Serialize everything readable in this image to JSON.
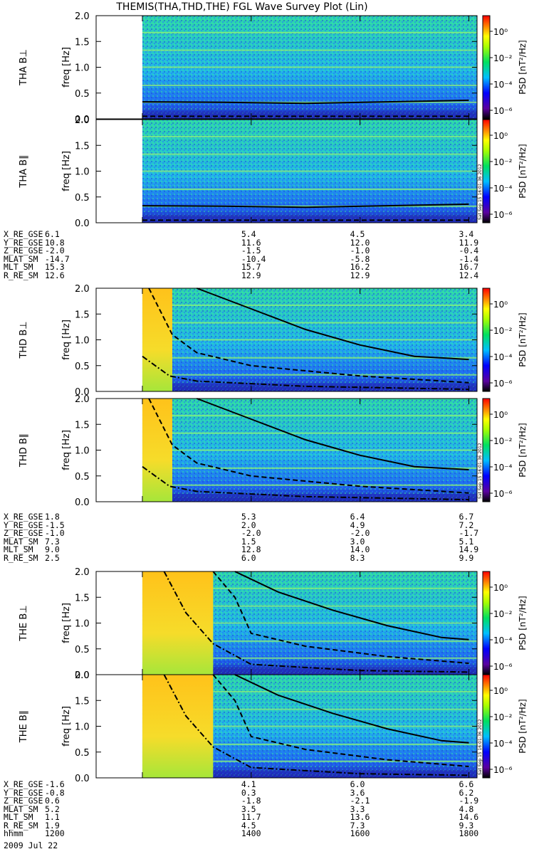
{
  "title": "THEMIS(THA,THD,THE) FGL Wave Survey Plot (Lin)",
  "footer": {
    "time_label": "hhmm",
    "date": "2009 Jul 22",
    "stamp": "Sat Sep 15 16:01:36 2012"
  },
  "colorbar": {
    "title": "PSD [nT²/Hz]",
    "ticks": [
      "10⁰",
      "10⁻²",
      "10⁻⁴",
      "10⁻⁶"
    ]
  },
  "chart_data": {
    "type": "heatmap",
    "x_range": [
      1115,
      1815
    ],
    "x_ticks": [
      1200,
      1400,
      1600,
      1800
    ],
    "y_range": [
      0,
      2.0
    ],
    "y_ticks": [
      "0.0",
      "0.5",
      "1.0",
      "1.5",
      "2.0"
    ],
    "yunit": "freq [Hz]",
    "panels": [
      {
        "label": "THA B⊥",
        "probe": "A",
        "comp": "perp"
      },
      {
        "label": "THA B∥",
        "probe": "A",
        "comp": "par"
      },
      {
        "label": "THD B⊥",
        "probe": "D",
        "comp": "perp"
      },
      {
        "label": "THD B∥",
        "probe": "D",
        "comp": "par"
      },
      {
        "label": "THE B⊥",
        "probe": "E",
        "comp": "perp"
      },
      {
        "label": "THE B∥",
        "probe": "E",
        "comp": "par"
      }
    ],
    "data_start": {
      "A": 1200,
      "D": 1200,
      "E": 1200
    },
    "hot_end": {
      "A": null,
      "D": 1255,
      "E": 1330
    },
    "gyro_curves": {
      "A": {
        "solid": [
          [
            1200,
            0.33
          ],
          [
            1350,
            0.32
          ],
          [
            1500,
            0.3
          ],
          [
            1650,
            0.33
          ],
          [
            1800,
            0.36
          ]
        ],
        "dashed": [
          [
            1200,
            0.05
          ],
          [
            1800,
            0.05
          ]
        ]
      },
      "D": {
        "solid": [
          [
            1300,
            2.0
          ],
          [
            1400,
            1.6
          ],
          [
            1500,
            1.2
          ],
          [
            1600,
            0.9
          ],
          [
            1700,
            0.68
          ],
          [
            1800,
            0.62
          ]
        ],
        "dashed": [
          [
            1212,
            2.0
          ],
          [
            1255,
            1.1
          ],
          [
            1300,
            0.75
          ],
          [
            1400,
            0.5
          ],
          [
            1600,
            0.3
          ],
          [
            1800,
            0.17
          ]
        ],
        "dashdot": [
          [
            1200,
            0.68
          ],
          [
            1250,
            0.3
          ],
          [
            1300,
            0.2
          ],
          [
            1500,
            0.1
          ],
          [
            1800,
            0.04
          ]
        ]
      },
      "E": {
        "solid": [
          [
            1370,
            2.0
          ],
          [
            1450,
            1.6
          ],
          [
            1550,
            1.25
          ],
          [
            1650,
            0.95
          ],
          [
            1750,
            0.72
          ],
          [
            1800,
            0.68
          ]
        ],
        "dashed": [
          [
            1330,
            2.0
          ],
          [
            1370,
            1.5
          ],
          [
            1400,
            0.8
          ],
          [
            1500,
            0.55
          ],
          [
            1650,
            0.35
          ],
          [
            1800,
            0.22
          ]
        ],
        "dashdot": [
          [
            1240,
            2.0
          ],
          [
            1280,
            1.2
          ],
          [
            1330,
            0.6
          ],
          [
            1400,
            0.2
          ],
          [
            1600,
            0.08
          ],
          [
            1800,
            0.05
          ]
        ]
      }
    }
  },
  "ephemeris": [
    {
      "labels": [
        "X_RE_GSE",
        "Y_RE_GSE",
        "Z_RE_GSE",
        "MLAT_SM",
        "MLT_SM",
        "R_RE_SM"
      ],
      "values": [
        [
          "6.1",
          "5.4",
          "4.5",
          "3.4"
        ],
        [
          "10.8",
          "11.6",
          "12.0",
          "11.9"
        ],
        [
          "-2.0",
          "-1.5",
          "-1.0",
          "-0.4"
        ],
        [
          "-14.7",
          "-10.4",
          "-5.8",
          "-1.4"
        ],
        [
          "15.3",
          "15.7",
          "16.2",
          "16.7"
        ],
        [
          "12.6",
          "12.9",
          "12.9",
          "12.4"
        ]
      ]
    },
    {
      "labels": [
        "X_RE_GSE",
        "Y_RE_GSE",
        "Z_RE_GSE",
        "MLAT_SM",
        "MLT_SM",
        "R_RE_SM"
      ],
      "values": [
        [
          "1.8",
          "5.3",
          "6.4",
          "6.7"
        ],
        [
          "-1.5",
          "2.0",
          "4.9",
          "7.2"
        ],
        [
          "-1.0",
          "-2.0",
          "-2.0",
          "-1.7"
        ],
        [
          "7.3",
          "1.5",
          "3.0",
          "5.1"
        ],
        [
          "9.0",
          "12.8",
          "14.0",
          "14.9"
        ],
        [
          "2.5",
          "6.0",
          "8.3",
          "9.9"
        ]
      ]
    },
    {
      "labels": [
        "X_RE_GSE",
        "Y_RE_GSE",
        "Z_RE_GSE",
        "MLAT_SM",
        "MLT_SM",
        "R_RE_SM",
        "hhmm"
      ],
      "values": [
        [
          "-1.6",
          "4.1",
          "6.0",
          "6.6"
        ],
        [
          "-0.8",
          "0.3",
          "3.6",
          "6.2"
        ],
        [
          "0.6",
          "-1.8",
          "-2.1",
          "-1.9"
        ],
        [
          "5.2",
          "3.5",
          "3.3",
          "4.8"
        ],
        [
          "1.1",
          "11.7",
          "13.6",
          "14.6"
        ],
        [
          "1.9",
          "4.5",
          "7.3",
          "9.3"
        ],
        [
          "1200",
          "1400",
          "1600",
          "1800"
        ]
      ]
    }
  ]
}
